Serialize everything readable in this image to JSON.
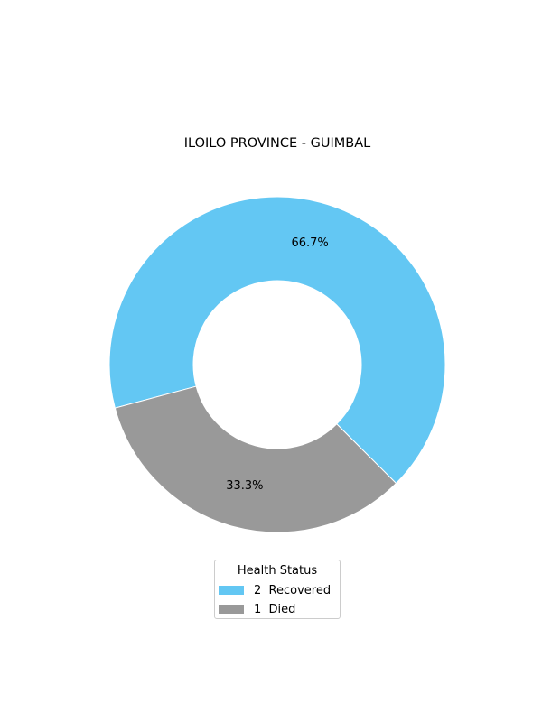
{
  "chart_data": {
    "type": "pie",
    "style": "donut",
    "title": "ILOILO PROVINCE - GUIMBAL",
    "categories": [
      "Recovered",
      "Died"
    ],
    "values": [
      2,
      1
    ],
    "percent_labels": [
      "66.7%",
      "33.3%"
    ],
    "colors": [
      "#63c7f3",
      "#999999"
    ],
    "legend": {
      "title": "Health Status",
      "placement": "bottom-center",
      "entries": [
        {
          "count": "2",
          "label": "Recovered",
          "color": "#63c7f3"
        },
        {
          "count": "1",
          "label": "Died",
          "color": "#999999"
        }
      ]
    }
  }
}
